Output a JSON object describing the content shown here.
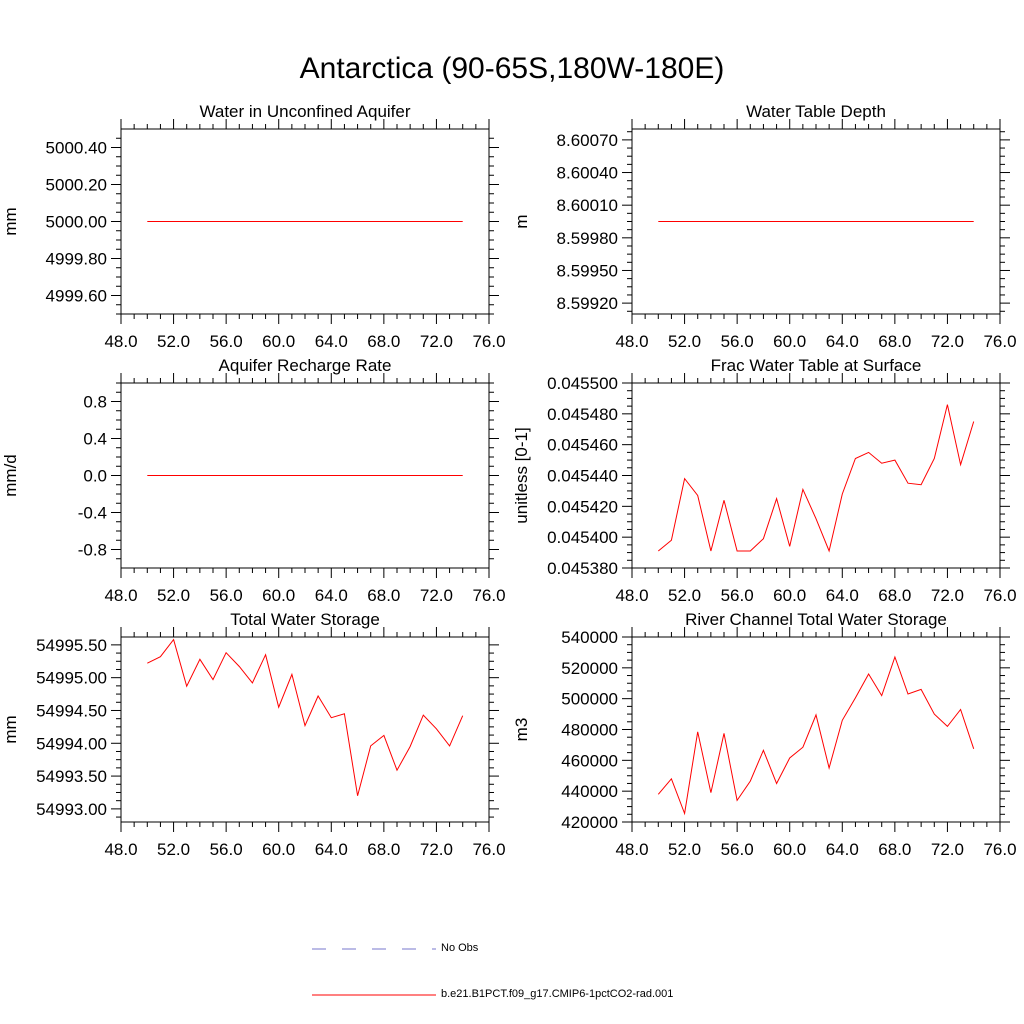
{
  "title": "Antarctica (90-65S,180W-180E)",
  "colors": {
    "model": "#ff0000",
    "obs": "#7777cc",
    "axis": "#000000"
  },
  "legend": {
    "obs_label": "No Obs",
    "model_label": "b.e21.B1PCT.f09_g17.CMIP6-1pctCO2-rad.001"
  },
  "chart_data": [
    {
      "type": "line",
      "title": "Water in Unconfined Aquifer",
      "xlabel": "",
      "ylabel": "mm",
      "xlim": [
        48,
        76
      ],
      "ylim": [
        4999.5,
        5000.5
      ],
      "xticks": [
        48,
        52,
        56,
        60,
        64,
        68,
        72,
        76
      ],
      "xtick_labels": [
        "48.0",
        "52.0",
        "56.0",
        "60.0",
        "64.0",
        "68.0",
        "72.0",
        "76.0"
      ],
      "yticks": [
        4999.6,
        4999.8,
        5000.0,
        5000.2,
        5000.4
      ],
      "ytick_labels": [
        "4999.60",
        "4999.80",
        "5000.00",
        "5000.20",
        "5000.40"
      ],
      "x": [
        50,
        74
      ],
      "series": [
        {
          "values": [
            5000.0,
            5000.0
          ]
        }
      ]
    },
    {
      "type": "line",
      "title": "Water Table Depth",
      "xlabel": "",
      "ylabel": "m",
      "xlim": [
        48,
        76
      ],
      "ylim": [
        8.5991,
        8.6008
      ],
      "xticks": [
        48,
        52,
        56,
        60,
        64,
        68,
        72,
        76
      ],
      "xtick_labels": [
        "48.0",
        "52.0",
        "56.0",
        "60.0",
        "64.0",
        "68.0",
        "72.0",
        "76.0"
      ],
      "yticks": [
        8.5992,
        8.5995,
        8.5998,
        8.6001,
        8.6004,
        8.6007
      ],
      "ytick_labels": [
        "8.59920",
        "8.59950",
        "8.59980",
        "8.60010",
        "8.60040",
        "8.60070"
      ],
      "x": [
        50,
        74
      ],
      "series": [
        {
          "values": [
            8.59995,
            8.59995
          ]
        }
      ]
    },
    {
      "type": "line",
      "title": "Aquifer Recharge Rate",
      "xlabel": "",
      "ylabel": "mm/d",
      "xlim": [
        48,
        76
      ],
      "ylim": [
        -1.0,
        1.0
      ],
      "xticks": [
        48,
        52,
        56,
        60,
        64,
        68,
        72,
        76
      ],
      "xtick_labels": [
        "48.0",
        "52.0",
        "56.0",
        "60.0",
        "64.0",
        "68.0",
        "72.0",
        "76.0"
      ],
      "yticks": [
        -0.8,
        -0.4,
        0.0,
        0.4,
        0.8
      ],
      "ytick_labels": [
        "-0.8",
        "-0.4",
        "0.0",
        "0.4",
        "0.8"
      ],
      "x": [
        50,
        74
      ],
      "series": [
        {
          "values": [
            0.0,
            0.0
          ]
        }
      ]
    },
    {
      "type": "line",
      "title": "Frac Water Table at Surface",
      "xlabel": "",
      "ylabel": "unitless [0-1]",
      "xlim": [
        48,
        76
      ],
      "ylim": [
        0.04538,
        0.0455
      ],
      "xticks": [
        48,
        52,
        56,
        60,
        64,
        68,
        72,
        76
      ],
      "xtick_labels": [
        "48.0",
        "52.0",
        "56.0",
        "60.0",
        "64.0",
        "68.0",
        "72.0",
        "76.0"
      ],
      "yticks": [
        0.04538,
        0.0454,
        0.04542,
        0.04544,
        0.04546,
        0.04548,
        0.0455
      ],
      "ytick_labels": [
        "0.045380",
        "0.045400",
        "0.045420",
        "0.045440",
        "0.045460",
        "0.045480",
        "0.045500"
      ],
      "x": [
        50,
        51,
        52,
        53,
        54,
        55,
        56,
        57,
        58,
        59,
        60,
        61,
        62,
        63,
        64,
        65,
        66,
        67,
        68,
        69,
        70,
        71,
        72,
        73,
        74
      ],
      "series": [
        {
          "values": [
            0.045391,
            0.045398,
            0.045438,
            0.045427,
            0.045391,
            0.045424,
            0.045391,
            0.045391,
            0.045399,
            0.045425,
            0.045394,
            0.045431,
            0.045412,
            0.045391,
            0.045428,
            0.045451,
            0.045455,
            0.045448,
            0.04545,
            0.045435,
            0.045434,
            0.045451,
            0.045486,
            0.045447,
            0.045475
          ]
        }
      ]
    },
    {
      "type": "line",
      "title": "Total Water Storage",
      "xlabel": "",
      "ylabel": "mm",
      "xlim": [
        48,
        76
      ],
      "ylim": [
        54992.8,
        54995.62
      ],
      "xticks": [
        48,
        52,
        56,
        60,
        64,
        68,
        72,
        76
      ],
      "xtick_labels": [
        "48.0",
        "52.0",
        "56.0",
        "60.0",
        "64.0",
        "68.0",
        "72.0",
        "76.0"
      ],
      "yticks": [
        54993.0,
        54993.5,
        54994.0,
        54994.5,
        54995.0,
        54995.5
      ],
      "ytick_labels": [
        "54993.00",
        "54993.50",
        "54994.00",
        "54994.50",
        "54995.00",
        "54995.50"
      ],
      "x": [
        50,
        51,
        52,
        53,
        54,
        55,
        56,
        57,
        58,
        59,
        60,
        61,
        62,
        63,
        64,
        65,
        66,
        67,
        68,
        69,
        70,
        71,
        72,
        73,
        74
      ],
      "series": [
        {
          "values": [
            54995.22,
            54995.32,
            54995.58,
            54994.87,
            54995.28,
            54994.97,
            54995.38,
            54995.17,
            54994.92,
            54995.35,
            54994.55,
            54995.05,
            54994.27,
            54994.72,
            54994.39,
            54994.45,
            54993.2,
            54993.96,
            54994.12,
            54993.59,
            54993.95,
            54994.43,
            54994.22,
            54993.96,
            54994.42
          ]
        }
      ]
    },
    {
      "type": "line",
      "title": "River Channel Total Water Storage",
      "xlabel": "",
      "ylabel": "m3",
      "xlim": [
        48,
        76
      ],
      "ylim": [
        420000,
        540000
      ],
      "xticks": [
        48,
        52,
        56,
        60,
        64,
        68,
        72,
        76
      ],
      "xtick_labels": [
        "48.0",
        "52.0",
        "56.0",
        "60.0",
        "64.0",
        "68.0",
        "72.0",
        "76.0"
      ],
      "yticks": [
        420000,
        440000,
        460000,
        480000,
        500000,
        520000,
        540000
      ],
      "ytick_labels": [
        "420000",
        "440000",
        "460000",
        "480000",
        "500000",
        "520000",
        "540000"
      ],
      "x": [
        50,
        51,
        52,
        53,
        54,
        55,
        56,
        57,
        58,
        59,
        60,
        61,
        62,
        63,
        64,
        65,
        66,
        67,
        68,
        69,
        70,
        71,
        72,
        73,
        74
      ],
      "series": [
        {
          "values": [
            438000,
            448000,
            425500,
            478500,
            439000,
            477500,
            434000,
            446500,
            466500,
            445000,
            461500,
            468500,
            489500,
            455000,
            486000,
            500500,
            516000,
            502000,
            527000,
            503000,
            506000,
            490000,
            482000,
            493000,
            467500
          ]
        }
      ]
    }
  ]
}
